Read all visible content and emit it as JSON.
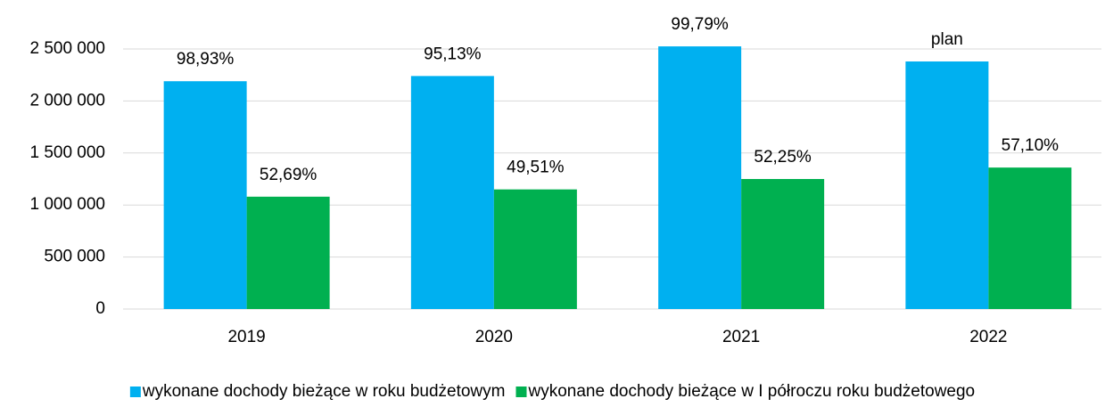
{
  "chart_data": {
    "type": "bar",
    "categories": [
      "2019",
      "2020",
      "2021",
      "2022"
    ],
    "series": [
      {
        "name": "wykonane dochody bieżące w roku budżetowym",
        "color": "#00b0f0",
        "values": [
          2190000,
          2240000,
          2525000,
          2380000
        ],
        "labels": [
          "98,93%",
          "95,13%",
          "99,79%",
          "plan"
        ]
      },
      {
        "name": "wykonane dochody bieżące w I półroczu roku budżetowego",
        "color": "#00b050",
        "values": [
          1080000,
          1150000,
          1250000,
          1360000
        ],
        "labels": [
          "52,69%",
          "49,51%",
          "52,25%",
          "57,10%"
        ]
      }
    ],
    "ylim": [
      0,
      2500000
    ],
    "yticks": [
      0,
      {
        "value": 500000,
        "label": "500 000"
      },
      {
        "value": 1000000,
        "label": "1 000 000"
      },
      {
        "value": 1500000,
        "label": "1 500 000"
      },
      {
        "value": 2000000,
        "label": "2 000 000"
      },
      {
        "value": 2500000,
        "label": "2 500 000"
      }
    ],
    "grid": true,
    "legend": "bottom"
  }
}
